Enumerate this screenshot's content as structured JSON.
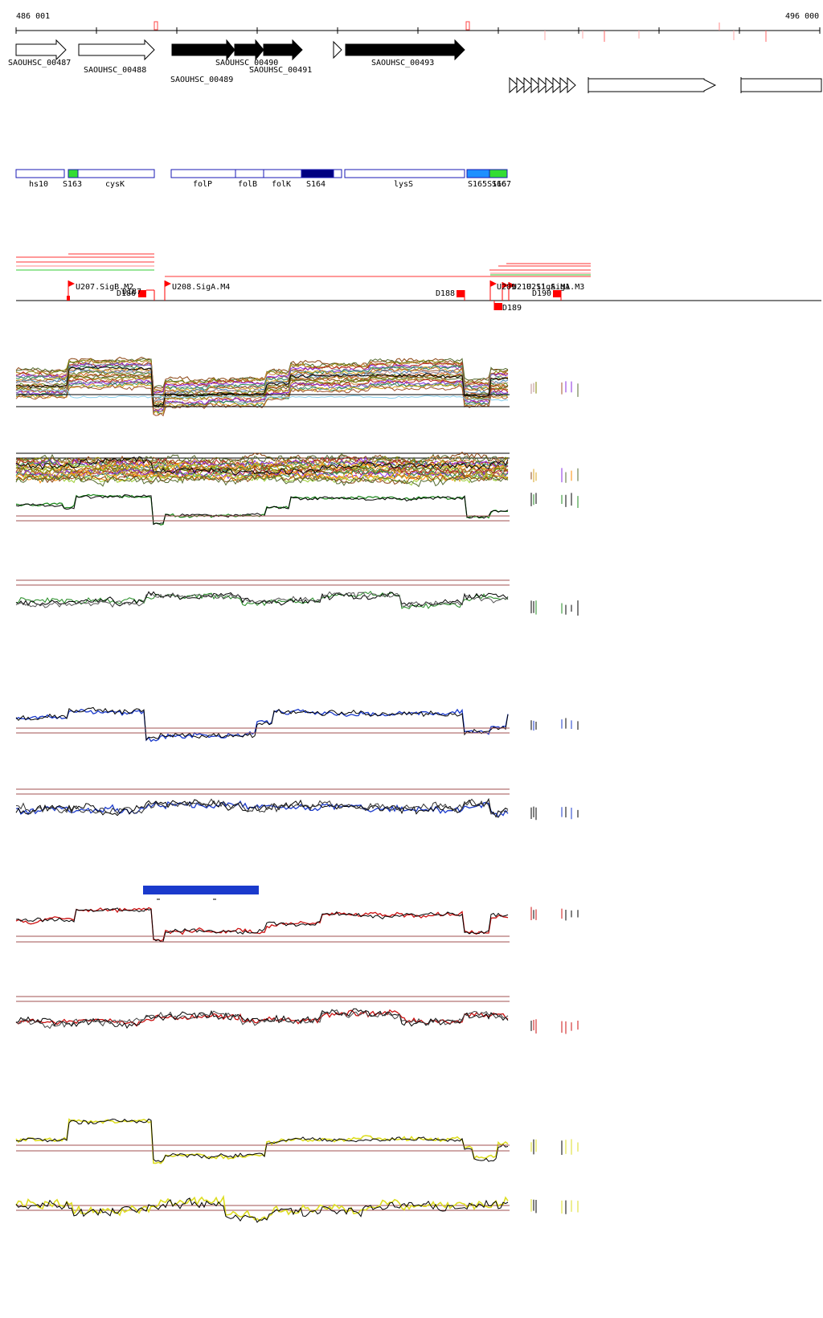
{
  "coords": {
    "start": "486 001",
    "end": "496 000"
  },
  "genes_top": [
    {
      "label": "SAOUHSC_00487",
      "fill": "#ffffff"
    },
    {
      "label": "SAOUHSC_00488",
      "fill": "#ffffff"
    },
    {
      "label": "SAOUHSC_00489",
      "fill": "#000000"
    },
    {
      "label": "SAOUHSC_00490",
      "fill": "#000000"
    },
    {
      "label": "SAOUHSC_00491",
      "fill": "#000000"
    },
    {
      "label": "SAOUHSC_00493",
      "fill": "#000000"
    }
  ],
  "features": [
    {
      "label": "hs10"
    },
    {
      "label": "S163"
    },
    {
      "label": "cysK"
    },
    {
      "label": "folP"
    },
    {
      "label": "folB"
    },
    {
      "label": "folK"
    },
    {
      "label": "S164"
    },
    {
      "label": "lysS"
    },
    {
      "label": "S165S166"
    },
    {
      "label": "S167"
    }
  ],
  "promoters": [
    {
      "label": "U207.SigB.M2"
    },
    {
      "label": "U208.SigA.M4"
    },
    {
      "label": "U209"
    },
    {
      "label": "U210.SigA.M1"
    },
    {
      "label": "U211.SigA.M3"
    }
  ],
  "terminators": [
    {
      "label": "D186"
    },
    {
      "label": "D187"
    },
    {
      "label": "D188"
    },
    {
      "label": "D189"
    },
    {
      "label": "D190"
    }
  ],
  "colors": {
    "feature_outline": "#1a1ab4",
    "feature_green": "#33dd33",
    "feature_navy": "#000080",
    "feature_cyan": "#1e90ff",
    "promoter_red": "#ff0000",
    "green_track": "#228b22",
    "blue_track": "#1a3acc",
    "red_track": "#cc1111",
    "yellow_track": "#dddd22",
    "threshold": "#a05050"
  }
}
